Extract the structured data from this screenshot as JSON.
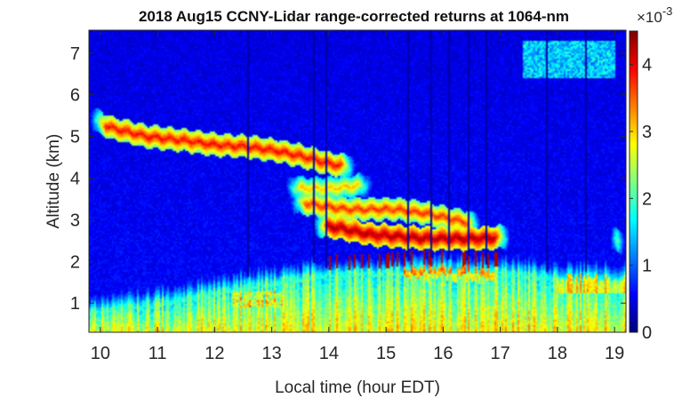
{
  "chart_data": {
    "type": "heatmap",
    "title": "2018 Aug15 CCNY-Lidar range-corrected returns at 1064-nm",
    "xlabel": "Local time (hour EDT)",
    "ylabel": "Altitude (km)",
    "x_range": [
      9.8,
      19.2
    ],
    "y_range": [
      0.3,
      7.55
    ],
    "x_ticks": [
      10,
      11,
      12,
      13,
      14,
      15,
      16,
      17,
      18,
      19
    ],
    "y_ticks": [
      1,
      2,
      3,
      4,
      5,
      6,
      7
    ],
    "colorbar": {
      "colormap": "jet",
      "range": [
        0,
        4.5
      ],
      "ticks": [
        0,
        1,
        2,
        3,
        4
      ],
      "exponent_label": "×10",
      "exponent": "-3"
    },
    "features": {
      "background_value": 0.4,
      "boundary_layer": {
        "times": [
          9.8,
          10.5,
          11,
          12,
          12.5,
          13,
          13.5,
          14,
          15,
          16,
          17,
          18,
          19.2
        ],
        "top_km": [
          0.75,
          0.9,
          1.0,
          1.25,
          1.4,
          1.5,
          1.6,
          1.7,
          1.75,
          1.85,
          1.75,
          1.6,
          1.6
        ]
      },
      "aerosol_layers": [
        {
          "times": [
            9.8,
            10.2,
            10.8,
            11.5,
            12.0,
            12.6,
            13.1,
            13.6,
            14.0,
            14.5
          ],
          "altitude_km": [
            5.45,
            5.2,
            5.0,
            4.9,
            4.8,
            4.75,
            4.65,
            4.5,
            4.35,
            4.25
          ],
          "peak": 3.8
        },
        {
          "times": [
            13.2,
            13.6,
            14.0,
            14.4,
            14.8
          ],
          "altitude_km": [
            3.8,
            3.75,
            3.75,
            3.8,
            3.85
          ],
          "peak": 3.0
        },
        {
          "times": [
            13.3,
            13.8,
            14.3,
            14.8,
            15.2,
            15.7,
            16.2,
            16.7
          ],
          "altitude_km": [
            3.45,
            3.35,
            3.25,
            3.25,
            3.25,
            3.15,
            3.0,
            2.85
          ],
          "peak": 3.6
        },
        {
          "times": [
            13.7,
            14.2,
            14.7,
            15.2,
            15.7,
            16.2,
            16.7,
            17.2
          ],
          "altitude_km": [
            2.9,
            2.8,
            2.65,
            2.6,
            2.55,
            2.55,
            2.55,
            2.6
          ],
          "peak": 4.2
        },
        {
          "times": [
            18.9,
            19.2
          ],
          "altitude_km": [
            2.55,
            2.45
          ],
          "peak": 4.3
        }
      ],
      "high_cloud": {
        "time_range": [
          17.4,
          19.0
        ],
        "altitude_km": [
          6.4,
          7.3
        ],
        "peak": 1.6
      },
      "dropout_times": [
        12.6,
        13.75,
        13.95,
        15.4,
        15.8,
        16.1,
        16.45,
        16.75,
        17.8,
        18.5
      ]
    }
  }
}
